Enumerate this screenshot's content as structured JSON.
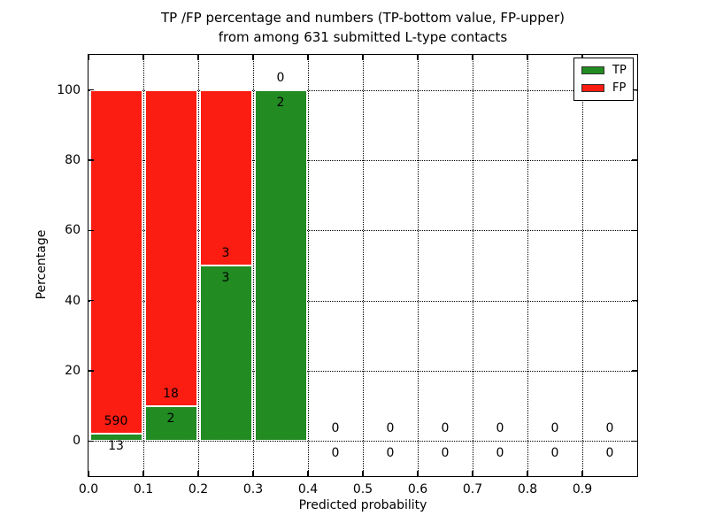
{
  "chart_data": {
    "type": "bar",
    "stacked": true,
    "title_line1": "TP /FP percentage and numbers (TP-bottom value, FP-upper)",
    "title_line2": "from among 631 submitted L-type contacts",
    "xlabel": "Predicted probability",
    "ylabel": "Percentage",
    "xlim": [
      0.0,
      1.0
    ],
    "ylim": [
      -10,
      110
    ],
    "xticks": [
      "0.0",
      "0.1",
      "0.2",
      "0.3",
      "0.4",
      "0.5",
      "0.6",
      "0.7",
      "0.8",
      "0.9"
    ],
    "yticks": [
      0,
      20,
      40,
      60,
      80,
      100
    ],
    "grid": "dotted",
    "legend": [
      "TP",
      "FP"
    ],
    "legend_position": "upper right",
    "colors": {
      "tp": "#228b22",
      "fp": "#fb1c12"
    },
    "total_contacts": 631,
    "bins": [
      {
        "range": "0.0-0.1",
        "x0": 0.0,
        "x1": 0.1,
        "tp_count": 13,
        "fp_count": 590,
        "tp_pct": 2.16,
        "fp_pct": 97.84
      },
      {
        "range": "0.1-0.2",
        "x0": 0.1,
        "x1": 0.2,
        "tp_count": 2,
        "fp_count": 18,
        "tp_pct": 10,
        "fp_pct": 90
      },
      {
        "range": "0.2-0.3",
        "x0": 0.2,
        "x1": 0.3,
        "tp_count": 3,
        "fp_count": 3,
        "tp_pct": 50,
        "fp_pct": 50
      },
      {
        "range": "0.3-0.4",
        "x0": 0.3,
        "x1": 0.4,
        "tp_count": 2,
        "fp_count": 0,
        "tp_pct": 100,
        "fp_pct": 0
      },
      {
        "range": "0.4-0.5",
        "x0": 0.4,
        "x1": 0.5,
        "tp_count": 0,
        "fp_count": 0,
        "tp_pct": 0,
        "fp_pct": 0
      },
      {
        "range": "0.5-0.6",
        "x0": 0.5,
        "x1": 0.6,
        "tp_count": 0,
        "fp_count": 0,
        "tp_pct": 0,
        "fp_pct": 0
      },
      {
        "range": "0.6-0.7",
        "x0": 0.6,
        "x1": 0.7,
        "tp_count": 0,
        "fp_count": 0,
        "tp_pct": 0,
        "fp_pct": 0
      },
      {
        "range": "0.7-0.8",
        "x0": 0.7,
        "x1": 0.8,
        "tp_count": 0,
        "fp_count": 0,
        "tp_pct": 0,
        "fp_pct": 0
      },
      {
        "range": "0.8-0.9",
        "x0": 0.8,
        "x1": 0.9,
        "tp_count": 0,
        "fp_count": 0,
        "tp_pct": 0,
        "fp_pct": 0
      },
      {
        "range": "0.9-1.0",
        "x0": 0.9,
        "x1": 1.0,
        "tp_count": 0,
        "fp_count": 0,
        "tp_pct": 0,
        "fp_pct": 0
      }
    ],
    "label_offsets": {
      "fp_label": 3.5,
      "tp_label": -3.5
    }
  }
}
